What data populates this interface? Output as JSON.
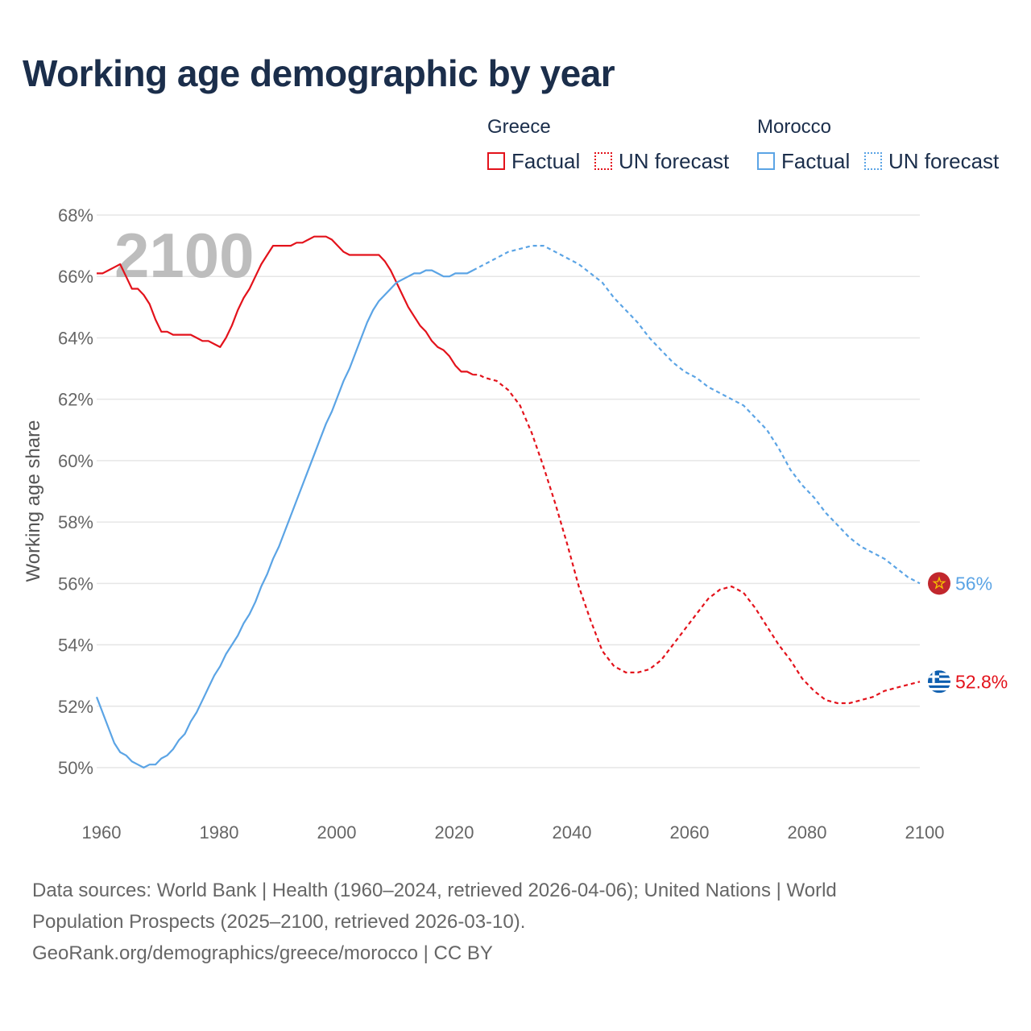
{
  "chart_data": {
    "type": "line",
    "title": "Working age demographic by year",
    "xlabel": "",
    "ylabel": "Working age share",
    "xlim": [
      1960,
      2100
    ],
    "ylim": [
      49,
      68
    ],
    "x_ticks": [
      "1960",
      "1980",
      "2000",
      "2020",
      "2040",
      "2060",
      "2080",
      "2100"
    ],
    "y_ticks": [
      "50%",
      "52%",
      "54%",
      "56%",
      "58%",
      "60%",
      "62%",
      "64%",
      "66%",
      "68%"
    ],
    "current_year": "2100",
    "legend": {
      "groups": [
        {
          "name": "Greece",
          "items": [
            "Factual",
            "UN forecast"
          ]
        },
        {
          "name": "Morocco",
          "items": [
            "Factual",
            "UN forecast"
          ]
        }
      ]
    },
    "series": [
      {
        "name": "Greece",
        "color": "#e3121b",
        "end_label": "52.8%",
        "end_icon": "greece-flag-icon",
        "factual": [
          [
            1960,
            66.1
          ],
          [
            1961,
            66.1
          ],
          [
            1962,
            66.2
          ],
          [
            1963,
            66.3
          ],
          [
            1964,
            66.4
          ],
          [
            1965,
            66.0
          ],
          [
            1966,
            65.6
          ],
          [
            1967,
            65.6
          ],
          [
            1968,
            65.4
          ],
          [
            1969,
            65.1
          ],
          [
            1970,
            64.6
          ],
          [
            1971,
            64.2
          ],
          [
            1972,
            64.2
          ],
          [
            1973,
            64.1
          ],
          [
            1974,
            64.1
          ],
          [
            1975,
            64.1
          ],
          [
            1976,
            64.1
          ],
          [
            1977,
            64.0
          ],
          [
            1978,
            63.9
          ],
          [
            1979,
            63.9
          ],
          [
            1980,
            63.8
          ],
          [
            1981,
            63.7
          ],
          [
            1982,
            64.0
          ],
          [
            1983,
            64.4
          ],
          [
            1984,
            64.9
          ],
          [
            1985,
            65.3
          ],
          [
            1986,
            65.6
          ],
          [
            1987,
            66.0
          ],
          [
            1988,
            66.4
          ],
          [
            1989,
            66.7
          ],
          [
            1990,
            67.0
          ],
          [
            1991,
            67.0
          ],
          [
            1992,
            67.0
          ],
          [
            1993,
            67.0
          ],
          [
            1994,
            67.1
          ],
          [
            1995,
            67.1
          ],
          [
            1996,
            67.2
          ],
          [
            1997,
            67.3
          ],
          [
            1998,
            67.3
          ],
          [
            1999,
            67.3
          ],
          [
            2000,
            67.2
          ],
          [
            2001,
            67.0
          ],
          [
            2002,
            66.8
          ],
          [
            2003,
            66.7
          ],
          [
            2004,
            66.7
          ],
          [
            2005,
            66.7
          ],
          [
            2006,
            66.7
          ],
          [
            2007,
            66.7
          ],
          [
            2008,
            66.7
          ],
          [
            2009,
            66.5
          ],
          [
            2010,
            66.2
          ],
          [
            2011,
            65.8
          ],
          [
            2012,
            65.4
          ],
          [
            2013,
            65.0
          ],
          [
            2014,
            64.7
          ],
          [
            2015,
            64.4
          ],
          [
            2016,
            64.2
          ],
          [
            2017,
            63.9
          ],
          [
            2018,
            63.7
          ],
          [
            2019,
            63.6
          ],
          [
            2020,
            63.4
          ],
          [
            2021,
            63.1
          ],
          [
            2022,
            62.9
          ],
          [
            2023,
            62.9
          ],
          [
            2024,
            62.8
          ]
        ],
        "forecast": [
          [
            2024,
            62.8
          ],
          [
            2025,
            62.8
          ],
          [
            2026,
            62.7
          ],
          [
            2028,
            62.6
          ],
          [
            2030,
            62.3
          ],
          [
            2032,
            61.8
          ],
          [
            2034,
            60.9
          ],
          [
            2036,
            59.8
          ],
          [
            2038,
            58.6
          ],
          [
            2040,
            57.3
          ],
          [
            2042,
            55.9
          ],
          [
            2044,
            54.8
          ],
          [
            2046,
            53.8
          ],
          [
            2048,
            53.3
          ],
          [
            2050,
            53.1
          ],
          [
            2052,
            53.1
          ],
          [
            2054,
            53.2
          ],
          [
            2056,
            53.5
          ],
          [
            2058,
            54.0
          ],
          [
            2060,
            54.5
          ],
          [
            2062,
            55.0
          ],
          [
            2064,
            55.5
          ],
          [
            2066,
            55.8
          ],
          [
            2068,
            55.9
          ],
          [
            2070,
            55.7
          ],
          [
            2072,
            55.2
          ],
          [
            2074,
            54.6
          ],
          [
            2076,
            54.0
          ],
          [
            2078,
            53.5
          ],
          [
            2080,
            52.9
          ],
          [
            2082,
            52.5
          ],
          [
            2084,
            52.2
          ],
          [
            2086,
            52.1
          ],
          [
            2088,
            52.1
          ],
          [
            2090,
            52.2
          ],
          [
            2092,
            52.3
          ],
          [
            2094,
            52.5
          ],
          [
            2096,
            52.6
          ],
          [
            2098,
            52.7
          ],
          [
            2100,
            52.8
          ]
        ]
      },
      {
        "name": "Morocco",
        "color": "#5ba4e5",
        "end_label": "56%",
        "end_icon": "morocco-flag-icon",
        "factual": [
          [
            1960,
            52.3
          ],
          [
            1961,
            51.8
          ],
          [
            1962,
            51.3
          ],
          [
            1963,
            50.8
          ],
          [
            1964,
            50.5
          ],
          [
            1965,
            50.4
          ],
          [
            1966,
            50.2
          ],
          [
            1967,
            50.1
          ],
          [
            1968,
            50.0
          ],
          [
            1969,
            50.1
          ],
          [
            1970,
            50.1
          ],
          [
            1971,
            50.3
          ],
          [
            1972,
            50.4
          ],
          [
            1973,
            50.6
          ],
          [
            1974,
            50.9
          ],
          [
            1975,
            51.1
          ],
          [
            1976,
            51.5
          ],
          [
            1977,
            51.8
          ],
          [
            1978,
            52.2
          ],
          [
            1979,
            52.6
          ],
          [
            1980,
            53.0
          ],
          [
            1981,
            53.3
          ],
          [
            1982,
            53.7
          ],
          [
            1983,
            54.0
          ],
          [
            1984,
            54.3
          ],
          [
            1985,
            54.7
          ],
          [
            1986,
            55.0
          ],
          [
            1987,
            55.4
          ],
          [
            1988,
            55.9
          ],
          [
            1989,
            56.3
          ],
          [
            1990,
            56.8
          ],
          [
            1991,
            57.2
          ],
          [
            1992,
            57.7
          ],
          [
            1993,
            58.2
          ],
          [
            1994,
            58.7
          ],
          [
            1995,
            59.2
          ],
          [
            1996,
            59.7
          ],
          [
            1997,
            60.2
          ],
          [
            1998,
            60.7
          ],
          [
            1999,
            61.2
          ],
          [
            2000,
            61.6
          ],
          [
            2001,
            62.1
          ],
          [
            2002,
            62.6
          ],
          [
            2003,
            63.0
          ],
          [
            2004,
            63.5
          ],
          [
            2005,
            64.0
          ],
          [
            2006,
            64.5
          ],
          [
            2007,
            64.9
          ],
          [
            2008,
            65.2
          ],
          [
            2009,
            65.4
          ],
          [
            2010,
            65.6
          ],
          [
            2011,
            65.8
          ],
          [
            2012,
            65.9
          ],
          [
            2013,
            66.0
          ],
          [
            2014,
            66.1
          ],
          [
            2015,
            66.1
          ],
          [
            2016,
            66.2
          ],
          [
            2017,
            66.2
          ],
          [
            2018,
            66.1
          ],
          [
            2019,
            66.0
          ],
          [
            2020,
            66.0
          ],
          [
            2021,
            66.1
          ],
          [
            2022,
            66.1
          ],
          [
            2023,
            66.1
          ],
          [
            2024,
            66.2
          ]
        ],
        "forecast": [
          [
            2024,
            66.2
          ],
          [
            2026,
            66.4
          ],
          [
            2028,
            66.6
          ],
          [
            2030,
            66.8
          ],
          [
            2032,
            66.9
          ],
          [
            2034,
            67.0
          ],
          [
            2036,
            67.0
          ],
          [
            2038,
            66.8
          ],
          [
            2040,
            66.6
          ],
          [
            2042,
            66.4
          ],
          [
            2044,
            66.1
          ],
          [
            2046,
            65.8
          ],
          [
            2048,
            65.3
          ],
          [
            2050,
            64.9
          ],
          [
            2052,
            64.5
          ],
          [
            2054,
            64.0
          ],
          [
            2056,
            63.6
          ],
          [
            2058,
            63.2
          ],
          [
            2060,
            62.9
          ],
          [
            2062,
            62.7
          ],
          [
            2064,
            62.4
          ],
          [
            2066,
            62.2
          ],
          [
            2068,
            62.0
          ],
          [
            2070,
            61.8
          ],
          [
            2072,
            61.4
          ],
          [
            2074,
            61.0
          ],
          [
            2076,
            60.4
          ],
          [
            2078,
            59.7
          ],
          [
            2080,
            59.2
          ],
          [
            2082,
            58.8
          ],
          [
            2084,
            58.3
          ],
          [
            2086,
            57.9
          ],
          [
            2088,
            57.5
          ],
          [
            2090,
            57.2
          ],
          [
            2092,
            57.0
          ],
          [
            2094,
            56.8
          ],
          [
            2096,
            56.5
          ],
          [
            2098,
            56.2
          ],
          [
            2100,
            56.0
          ]
        ]
      }
    ]
  },
  "legend_labels": {
    "greece": "Greece",
    "morocco": "Morocco",
    "factual": "Factual",
    "forecast": "UN forecast"
  },
  "sources": {
    "line1": "Data sources: World Bank | Health (1960–2024, retrieved 2026-04-06); United Nations | World",
    "line2": "Population Prospects (2025–2100, retrieved 2026-03-10).",
    "line3": "GeoRank.org/demographics/greece/morocco | CC BY"
  }
}
